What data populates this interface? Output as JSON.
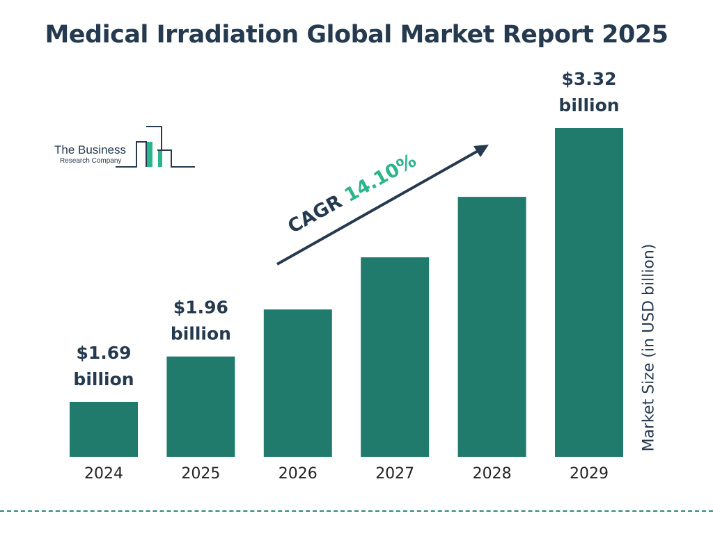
{
  "title": "Medical Irradiation Global Market Report 2025",
  "logo": {
    "line1": "The Business",
    "line2": "Research Company"
  },
  "chart_data": {
    "type": "bar",
    "categories": [
      "2024",
      "2025",
      "2026",
      "2027",
      "2028",
      "2029"
    ],
    "values": [
      1.69,
      1.96,
      2.24,
      2.55,
      2.91,
      3.32
    ],
    "data_labels": [
      {
        "index": 0,
        "line1": "$1.69",
        "line2": "billion"
      },
      {
        "index": 1,
        "line1": "$1.96",
        "line2": "billion"
      },
      {
        "index": 5,
        "line1": "$3.32",
        "line2": "billion"
      }
    ],
    "ylabel": "Market Size (in USD billion)",
    "xlabel": "",
    "annotation": {
      "prefix": "CAGR ",
      "value": "14.10%"
    },
    "grid": false,
    "colors": {
      "bar": "#217b6c",
      "text": "#253a4f",
      "cagr": "#2bb58a"
    }
  }
}
